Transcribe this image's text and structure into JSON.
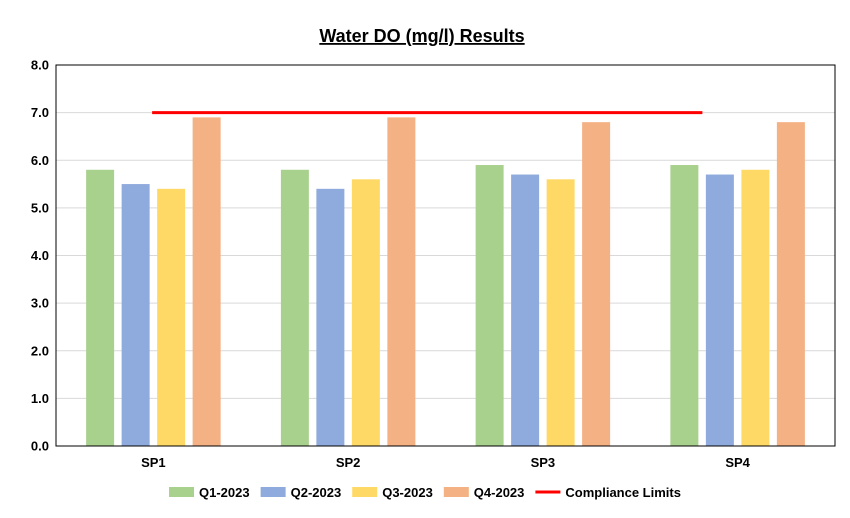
{
  "chart_data": {
    "type": "bar",
    "title": "Water DO (mg/l) Results",
    "xlabel": "",
    "ylabel": "",
    "categories": [
      "SP1",
      "SP2",
      "SP3",
      "SP4"
    ],
    "series": [
      {
        "name": "Q1-2023",
        "color": "#A9D18E",
        "values": [
          5.8,
          5.8,
          5.9,
          5.9
        ]
      },
      {
        "name": "Q2-2023",
        "color": "#8FAADC",
        "values": [
          5.5,
          5.4,
          5.7,
          5.7
        ]
      },
      {
        "name": "Q3-2023",
        "color": "#FFD966",
        "values": [
          5.4,
          5.6,
          5.6,
          5.8
        ]
      },
      {
        "name": "Q4-2023",
        "color": "#F4B183",
        "values": [
          6.9,
          6.9,
          6.8,
          6.8
        ]
      }
    ],
    "compliance_limit": {
      "name": "Compliance Limits",
      "color": "#FF0000",
      "value": 7.0
    },
    "ylim": [
      0,
      8
    ],
    "yticks": [
      "0.0",
      "1.0",
      "2.0",
      "3.0",
      "4.0",
      "5.0",
      "6.0",
      "7.0",
      "8.0"
    ],
    "grid": true,
    "legend_position": "bottom"
  }
}
